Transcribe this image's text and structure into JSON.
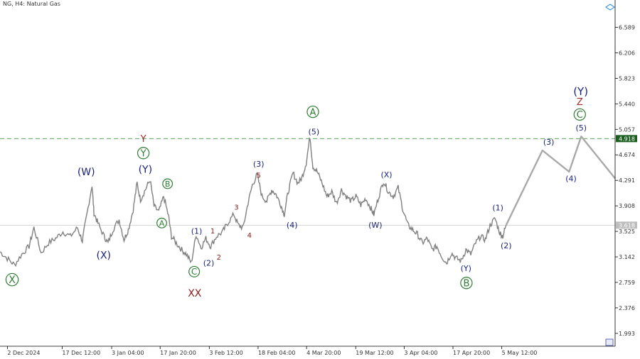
{
  "header": {
    "symbol": "NG",
    "timeframe": "H4",
    "instrument": "Natural Gas"
  },
  "chart_data": {
    "type": "line",
    "ylim": [
      1.8,
      6.85
    ],
    "y_ticks": [
      "6.589",
      "6.206",
      "5.823",
      "5.440",
      "5.057",
      "4.674",
      "4.291",
      "3.908",
      "3.525",
      "3.142",
      "2.759",
      "2.376",
      "1.993"
    ],
    "x_ticks": [
      "2 Dec 2024",
      "17 Dec 12:00",
      "3 Jan 04:00",
      "17 Jan 20:00",
      "3 Feb 12:00",
      "18 Feb 04:00",
      "4 Mar 20:00",
      "19 Mar 12:00",
      "3 Apr 04:00",
      "17 Apr 20:00",
      "5 May 12:00"
    ],
    "dashed_level": "4.918",
    "current_price": "3.618",
    "price_path": [
      [
        0,
        3.22
      ],
      [
        1.5,
        3.12
      ],
      [
        3,
        3.02
      ],
      [
        4.5,
        3.18
      ],
      [
        6,
        3.3
      ],
      [
        7,
        3.58
      ],
      [
        8.5,
        3.2
      ],
      [
        10,
        3.35
      ],
      [
        11.5,
        3.42
      ],
      [
        13,
        3.52
      ],
      [
        14.5,
        3.45
      ],
      [
        16,
        3.58
      ],
      [
        17,
        3.38
      ],
      [
        17.8,
        3.72
      ],
      [
        19,
        4.22
      ],
      [
        19.4,
        3.8
      ],
      [
        20.2,
        3.65
      ],
      [
        21.5,
        3.45
      ],
      [
        22.3,
        3.35
      ],
      [
        23.3,
        3.55
      ],
      [
        24.6,
        3.7
      ],
      [
        25.6,
        3.4
      ],
      [
        26.5,
        3.55
      ],
      [
        27.5,
        3.85
      ],
      [
        28.3,
        4.25
      ],
      [
        29,
        4.0
      ],
      [
        30,
        4.15
      ],
      [
        31,
        4.3
      ],
      [
        31.8,
        3.9
      ],
      [
        32.8,
        3.82
      ],
      [
        33.8,
        4.05
      ],
      [
        34.8,
        3.75
      ],
      [
        35.4,
        3.45
      ],
      [
        36.4,
        3.35
      ],
      [
        37.5,
        3.25
      ],
      [
        38.5,
        3.18
      ],
      [
        39.5,
        3.05
      ],
      [
        40.5,
        3.48
      ],
      [
        41.5,
        3.28
      ],
      [
        42.5,
        3.42
      ],
      [
        43.5,
        3.3
      ],
      [
        44.7,
        3.45
      ],
      [
        46,
        3.52
      ],
      [
        47,
        3.65
      ],
      [
        48.3,
        3.78
      ],
      [
        49.2,
        3.62
      ],
      [
        50.2,
        3.58
      ],
      [
        51.2,
        3.95
      ],
      [
        52.1,
        4.22
      ],
      [
        53.1,
        4.38
      ],
      [
        54.1,
        4.05
      ],
      [
        55.1,
        3.98
      ],
      [
        56.1,
        4.15
      ],
      [
        57,
        4.08
      ],
      [
        58,
        3.92
      ],
      [
        58.7,
        3.78
      ],
      [
        59.5,
        4.12
      ],
      [
        60.5,
        4.4
      ],
      [
        61.5,
        4.25
      ],
      [
        62.3,
        4.32
      ],
      [
        63.2,
        4.55
      ],
      [
        64,
        4.95
      ],
      [
        64.6,
        4.5
      ],
      [
        65.5,
        4.42
      ],
      [
        66.5,
        4.25
      ],
      [
        67.5,
        4.05
      ],
      [
        68.5,
        4.12
      ],
      [
        69.5,
        3.95
      ],
      [
        70.5,
        4.15
      ],
      [
        71.5,
        4.05
      ],
      [
        72.5,
        3.98
      ],
      [
        73.5,
        4.05
      ],
      [
        74.5,
        3.92
      ],
      [
        75.5,
        4.02
      ],
      [
        76.5,
        3.88
      ],
      [
        77.2,
        3.78
      ],
      [
        78.2,
        4.05
      ],
      [
        79.2,
        4.28
      ],
      [
        80.2,
        4.12
      ],
      [
        81.2,
        4.05
      ],
      [
        82.2,
        4.18
      ],
      [
        83.2,
        3.85
      ],
      [
        84.2,
        3.62
      ],
      [
        85.2,
        3.55
      ],
      [
        86.2,
        3.48
      ],
      [
        87.2,
        3.35
      ],
      [
        88.2,
        3.42
      ],
      [
        89.2,
        3.25
      ],
      [
        90.2,
        3.3
      ],
      [
        91.2,
        3.15
      ],
      [
        92.2,
        3.05
      ],
      [
        93.2,
        3.2
      ],
      [
        94.2,
        3.12
      ],
      [
        95.2,
        3.08
      ],
      [
        96.2,
        3.25
      ],
      [
        97.2,
        3.18
      ],
      [
        98.2,
        3.35
      ],
      [
        99.2,
        3.45
      ],
      [
        100.2,
        3.4
      ],
      [
        101.2,
        3.62
      ],
      [
        102.2,
        3.72
      ],
      [
        103.2,
        3.5
      ],
      [
        103.8,
        3.45
      ],
      [
        104.5,
        3.62
      ]
    ],
    "projection_path": [
      [
        104.5,
        3.62
      ],
      [
        112,
        4.74
      ],
      [
        117.5,
        4.42
      ],
      [
        120,
        4.95
      ],
      [
        127,
        4.32
      ]
    ],
    "wave_labels": [
      {
        "text": "X",
        "x": 2.5,
        "y": 2.8,
        "color": "#2e7d32",
        "circled": true,
        "size": 14
      },
      {
        "text": "(W)",
        "x": 17.8,
        "y": 4.42,
        "color": "#1a237e",
        "circled": false,
        "size": 14
      },
      {
        "text": "(X)",
        "x": 21.4,
        "y": 3.17,
        "color": "#1a237e",
        "circled": false,
        "size": 14
      },
      {
        "text": "Y",
        "x": 29.6,
        "y": 4.92,
        "color": "#a52a2a",
        "circled": false,
        "size": 13
      },
      {
        "text": "Y",
        "x": 29.6,
        "y": 4.7,
        "color": "#2e7d32",
        "circled": true,
        "size": 13
      },
      {
        "text": "(Y)",
        "x": 30,
        "y": 4.46,
        "color": "#1a237e",
        "circled": false,
        "size": 14
      },
      {
        "text": "B",
        "x": 34.6,
        "y": 4.24,
        "color": "#2e7d32",
        "circled": true,
        "size": 11
      },
      {
        "text": "A",
        "x": 33.4,
        "y": 3.65,
        "color": "#2e7d32",
        "circled": true,
        "size": 11
      },
      {
        "text": "C",
        "x": 40.1,
        "y": 2.92,
        "color": "#2e7d32",
        "circled": true,
        "size": 12
      },
      {
        "text": "XX",
        "x": 40.2,
        "y": 2.6,
        "color": "#8b1a1a",
        "circled": false,
        "size": 14
      },
      {
        "text": "(1)",
        "x": 40.6,
        "y": 3.53,
        "color": "#1a237e",
        "circled": false,
        "size": 11
      },
      {
        "text": "(2)",
        "x": 43.1,
        "y": 3.05,
        "color": "#1a237e",
        "circled": false,
        "size": 11
      },
      {
        "text": "1",
        "x": 43.9,
        "y": 3.53,
        "color": "#8b1a1a",
        "circled": false,
        "size": 10
      },
      {
        "text": "2",
        "x": 45.2,
        "y": 3.14,
        "color": "#8b1a1a",
        "circled": false,
        "size": 10
      },
      {
        "text": "3",
        "x": 48.8,
        "y": 3.89,
        "color": "#8b1a1a",
        "circled": false,
        "size": 10
      },
      {
        "text": "4",
        "x": 51.5,
        "y": 3.47,
        "color": "#8b1a1a",
        "circled": false,
        "size": 10
      },
      {
        "text": "(3)",
        "x": 53.4,
        "y": 4.54,
        "color": "#1a237e",
        "circled": false,
        "size": 11
      },
      {
        "text": "5",
        "x": 53.4,
        "y": 4.37,
        "color": "#8b1a1a",
        "circled": false,
        "size": 10
      },
      {
        "text": "(4)",
        "x": 60.3,
        "y": 3.62,
        "color": "#1a237e",
        "circled": false,
        "size": 11
      },
      {
        "text": "A",
        "x": 64.6,
        "y": 5.32,
        "color": "#2e7d32",
        "circled": true,
        "size": 13
      },
      {
        "text": "(5)",
        "x": 64.8,
        "y": 5.02,
        "color": "#1a237e",
        "circled": false,
        "size": 11
      },
      {
        "text": "(X)",
        "x": 79.8,
        "y": 4.38,
        "color": "#1a237e",
        "circled": false,
        "size": 11
      },
      {
        "text": "(W)",
        "x": 77.5,
        "y": 3.62,
        "color": "#1a237e",
        "circled": false,
        "size": 11
      },
      {
        "text": "(1)",
        "x": 102.8,
        "y": 3.88,
        "color": "#1a237e",
        "circled": false,
        "size": 11
      },
      {
        "text": "(2)",
        "x": 104.5,
        "y": 3.31,
        "color": "#1a237e",
        "circled": false,
        "size": 11
      },
      {
        "text": "(Y)",
        "x": 96.2,
        "y": 2.97,
        "color": "#1a237e",
        "circled": false,
        "size": 11
      },
      {
        "text": "B",
        "x": 96.3,
        "y": 2.75,
        "color": "#2e7d32",
        "circled": true,
        "size": 13
      },
      {
        "text": "(3)",
        "x": 113.3,
        "y": 4.87,
        "color": "#1a237e",
        "circled": false,
        "size": 11
      },
      {
        "text": "(4)",
        "x": 117.9,
        "y": 4.32,
        "color": "#1a237e",
        "circled": false,
        "size": 11
      },
      {
        "text": "(5)",
        "x": 120,
        "y": 5.08,
        "color": "#1a237e",
        "circled": false,
        "size": 11
      },
      {
        "text": "C",
        "x": 119.7,
        "y": 5.28,
        "color": "#2e7d32",
        "circled": true,
        "size": 13
      },
      {
        "text": "Z",
        "x": 119.7,
        "y": 5.47,
        "color": "#a52a2a",
        "circled": false,
        "size": 13
      },
      {
        "text": "(Y)",
        "x": 119.9,
        "y": 5.63,
        "color": "#1a237e",
        "circled": false,
        "size": 15
      }
    ],
    "colors": {
      "price": "#808080",
      "projection": "#a9a9a9",
      "dashed": "#5aa55a",
      "level_box": "#1b5e20",
      "current_box": "#bdbdbd"
    }
  }
}
